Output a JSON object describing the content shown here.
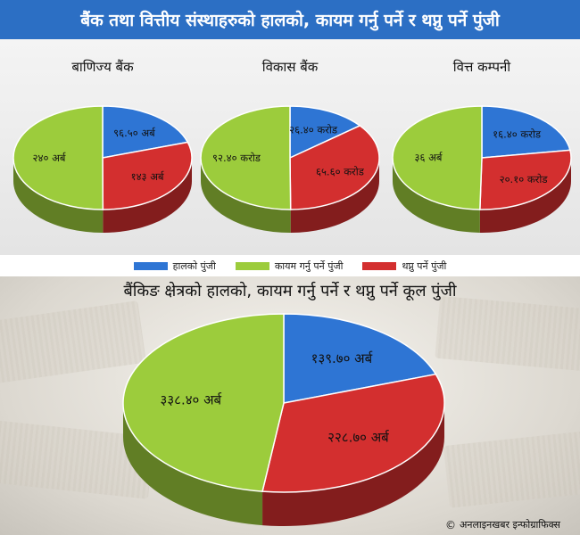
{
  "header": {
    "title": "बैंक तथा वित्तीय संस्थाहरुको हालको, कायम गर्नु पर्ने र थप्नु पर्ने पुंजी"
  },
  "colors": {
    "current": "#2e75d4",
    "maintain": "#9ccc3c",
    "add": "#d32f2f"
  },
  "legend": [
    {
      "label": "हालको पुंजी",
      "color": "#2e75d4"
    },
    {
      "label": "कायम गर्नु पर्ने पुंजी",
      "color": "#9ccc3c"
    },
    {
      "label": "थप्नु पर्ने पुंजी",
      "color": "#d32f2f"
    }
  ],
  "bottom": {
    "title": "बैंकिङ क्षेत्रको हालको, कायम गर्नु पर्ने र थप्नु पर्ने कूल पुंजी"
  },
  "footer": {
    "copyright_symbol": "©",
    "credit": "अनलाइनखबर इन्फोग्राफिक्स"
  },
  "chart_data": [
    {
      "type": "pie",
      "title": "बाणिज्य बैंक",
      "slices": [
        {
          "label": "९६.५० अर्ब",
          "value": 96.5,
          "color": "#2e75d4"
        },
        {
          "label": "१४३ अर्ब",
          "value": 143,
          "color": "#d32f2f"
        },
        {
          "label": "२४० अर्ब",
          "value": 240,
          "color": "#9ccc3c"
        }
      ]
    },
    {
      "type": "pie",
      "title": "विकास बैंक",
      "slices": [
        {
          "label": "२६.४० करोड",
          "value": 26.4,
          "color": "#2e75d4"
        },
        {
          "label": "६५.६० करोड",
          "value": 65.6,
          "color": "#d32f2f"
        },
        {
          "label": "९२.४० करोड",
          "value": 92.4,
          "color": "#9ccc3c"
        }
      ]
    },
    {
      "type": "pie",
      "title": "वित्त कम्पनी",
      "slices": [
        {
          "label": "१६.४० करोड",
          "value": 16.4,
          "color": "#2e75d4"
        },
        {
          "label": "२०.१० करोड",
          "value": 20.1,
          "color": "#d32f2f"
        },
        {
          "label": "३६ अर्ब",
          "value": 36,
          "color": "#9ccc3c"
        }
      ]
    },
    {
      "type": "pie",
      "title": "",
      "slices": [
        {
          "label": "१३९.७० अर्ब",
          "value": 139.7,
          "color": "#2e75d4"
        },
        {
          "label": "२२८.७० अर्ब",
          "value": 228.7,
          "color": "#d32f2f"
        },
        {
          "label": "३३८.४० अर्ब",
          "value": 338.4,
          "color": "#9ccc3c"
        }
      ]
    }
  ]
}
